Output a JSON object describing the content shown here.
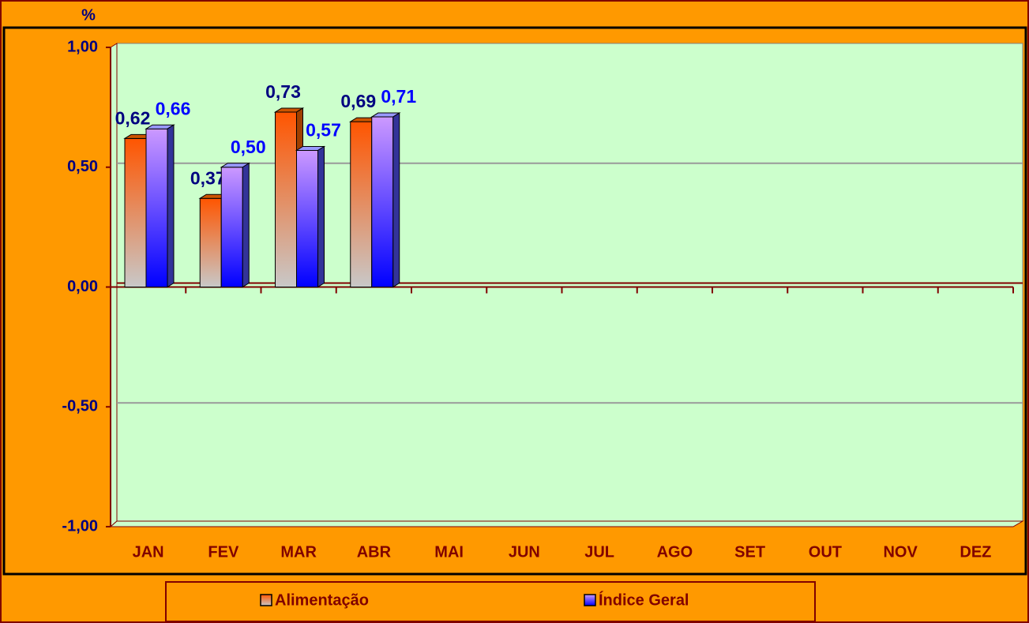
{
  "chart_data": {
    "type": "bar3d",
    "y_axis_label": "%",
    "categories": [
      "JAN",
      "FEV",
      "MAR",
      "ABR",
      "MAI",
      "JUN",
      "JUL",
      "AGO",
      "SET",
      "OUT",
      "NOV",
      "DEZ"
    ],
    "series": [
      {
        "name": "Alimentação",
        "color": "#FF6600",
        "label_color": "#000080",
        "values": [
          0.62,
          0.37,
          0.73,
          0.69,
          null,
          null,
          null,
          null,
          null,
          null,
          null,
          null
        ],
        "value_labels": [
          "0,62",
          "0,37",
          "0,73",
          "0,69",
          null,
          null,
          null,
          null,
          null,
          null,
          null,
          null
        ]
      },
      {
        "name": "Índice Geral",
        "color": "#3333FF",
        "label_color": "#0000FF",
        "values": [
          0.66,
          0.5,
          0.57,
          0.71,
          null,
          null,
          null,
          null,
          null,
          null,
          null,
          null
        ],
        "value_labels": [
          "0,66",
          "0,50",
          "0,57",
          "0,71",
          null,
          null,
          null,
          null,
          null,
          null,
          null,
          null
        ]
      }
    ],
    "ylim": [
      -1,
      1
    ],
    "yticks": [
      {
        "value": -1,
        "label": "-1,00"
      },
      {
        "value": -0.5,
        "label": "-0,50"
      },
      {
        "value": 0,
        "label": "0,00"
      },
      {
        "value": 0.5,
        "label": "0,50"
      },
      {
        "value": 1,
        "label": "1,00"
      }
    ],
    "grid": true
  }
}
